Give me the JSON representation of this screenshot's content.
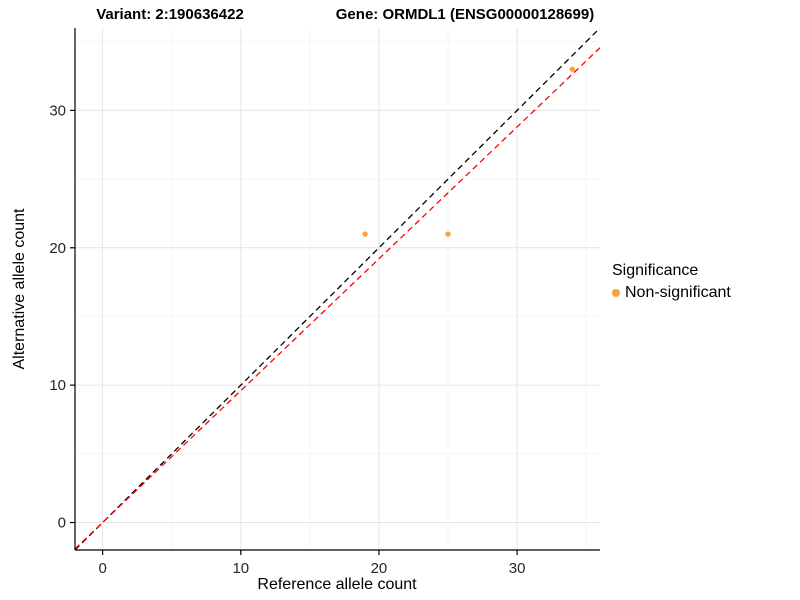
{
  "header": {
    "title_left": "Variant: 2:190636422",
    "title_right": "Gene: ORMDL1 (ENSG00000128699)"
  },
  "axes": {
    "xlabel": "Reference allele count",
    "ylabel": "Alternative allele count"
  },
  "legend": {
    "title": "Significance",
    "entries": [
      {
        "label": "Non-significant",
        "color": "#F9A13A"
      }
    ]
  },
  "chart_data": {
    "type": "scatter",
    "title": "Variant: 2:190636422   Gene: ORMDL1 (ENSG00000128699)",
    "xlabel": "Reference allele count",
    "ylabel": "Alternative allele count",
    "xlim": [
      -2,
      36
    ],
    "ylim": [
      -2,
      36
    ],
    "xticks": [
      0,
      10,
      20,
      30
    ],
    "yticks": [
      0,
      10,
      20,
      30
    ],
    "minor_ticks": [
      5,
      15,
      25,
      35
    ],
    "points": [
      {
        "x": 19,
        "y": 21
      },
      {
        "x": 25,
        "y": 21
      },
      {
        "x": 34,
        "y": 33
      }
    ],
    "point_color": "#F9A13A",
    "point_radius": 2.7,
    "lines": [
      {
        "name": "identity-line",
        "slope": 1.0,
        "intercept": 0,
        "color": "#000000",
        "dashed": true
      },
      {
        "name": "fit-line",
        "slope": 0.96,
        "intercept": 0,
        "color": "#FF0000",
        "dashed": true
      }
    ],
    "grid": {
      "on": true,
      "major_color": "#E4E4E4",
      "minor_color": "#F2F2F2"
    },
    "legend": {
      "title": "Significance",
      "position": "right",
      "entries": [
        {
          "label": "Non-significant",
          "color": "#F9A13A"
        }
      ]
    }
  }
}
